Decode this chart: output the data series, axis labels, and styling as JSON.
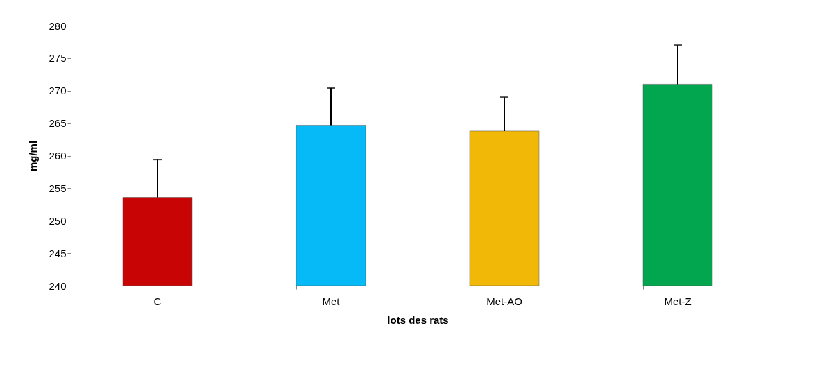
{
  "chart_data": {
    "type": "bar",
    "xlabel": "lots des rats",
    "ylabel": "mg/ml",
    "categories": [
      "C",
      "Met",
      "Met-AO",
      "Met-Z"
    ],
    "values": [
      253.6,
      264.7,
      263.8,
      271.0
    ],
    "colors": [
      "#c80404",
      "#06baf8",
      "#f2b807",
      "#02a64e"
    ],
    "errors": [
      [
        253.6,
        259.4
      ],
      [
        264.7,
        270.4
      ],
      [
        263.8,
        269.0
      ],
      [
        271.0,
        277.0
      ]
    ],
    "ylim": [
      240,
      280
    ],
    "yticks": [
      240,
      245,
      250,
      255,
      260,
      265,
      270,
      275,
      280
    ],
    "grid": false
  }
}
